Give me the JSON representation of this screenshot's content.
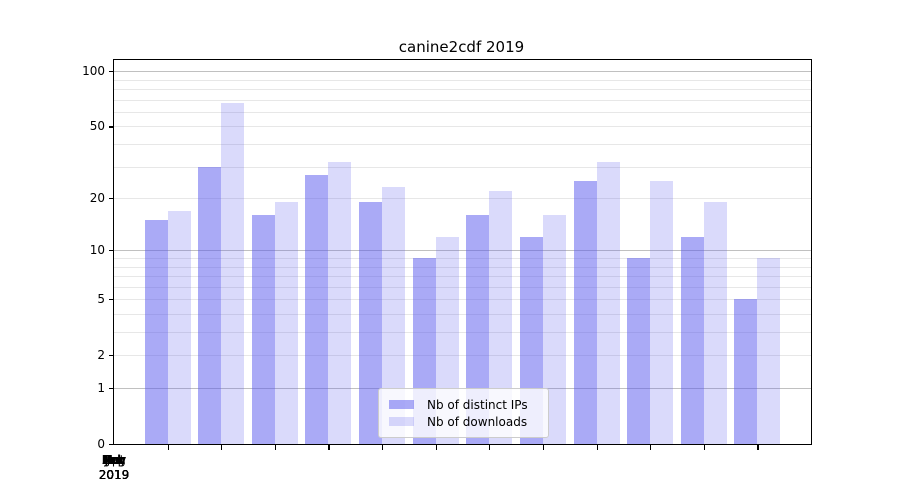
{
  "chart_data": {
    "type": "bar",
    "title": "canine2cdf 2019",
    "categories": [
      "Jan 2019",
      "Feb 2019",
      "Mar 2019",
      "Apr 2019",
      "May 2019",
      "Jun 2019",
      "Jul 2019",
      "Aug 2019",
      "Sep 2019",
      "Oct 2019",
      "Nov 2019",
      "Dec 2019"
    ],
    "series": [
      {
        "name": "Nb of distinct IPs",
        "color": "#5555ee",
        "alpha": 0.5,
        "values": [
          15,
          30,
          16,
          27,
          19,
          9,
          16,
          12,
          25,
          9,
          12,
          5
        ]
      },
      {
        "name": "Nb of downloads",
        "color": "#5555ee",
        "alpha": 0.22,
        "values": [
          17,
          67,
          19,
          32,
          23,
          12,
          22,
          16,
          32,
          25,
          19,
          9
        ]
      }
    ],
    "yscale": "log1p",
    "yticks": [
      0,
      1,
      2,
      5,
      10,
      20,
      50,
      100
    ],
    "ylim": [
      0,
      115
    ],
    "xlabel": "",
    "ylabel": "",
    "grid": {
      "major": [
        1,
        10,
        100
      ],
      "minor": [
        2,
        3,
        4,
        5,
        6,
        7,
        8,
        9,
        20,
        30,
        40,
        50,
        60,
        70,
        80,
        90
      ]
    },
    "legend_position": "lower center"
  },
  "colors": {
    "major_grid": "#c0c0c0",
    "minor_grid": "#e7e7e7",
    "axis": "#000000",
    "legend_border": "#cccccc"
  }
}
